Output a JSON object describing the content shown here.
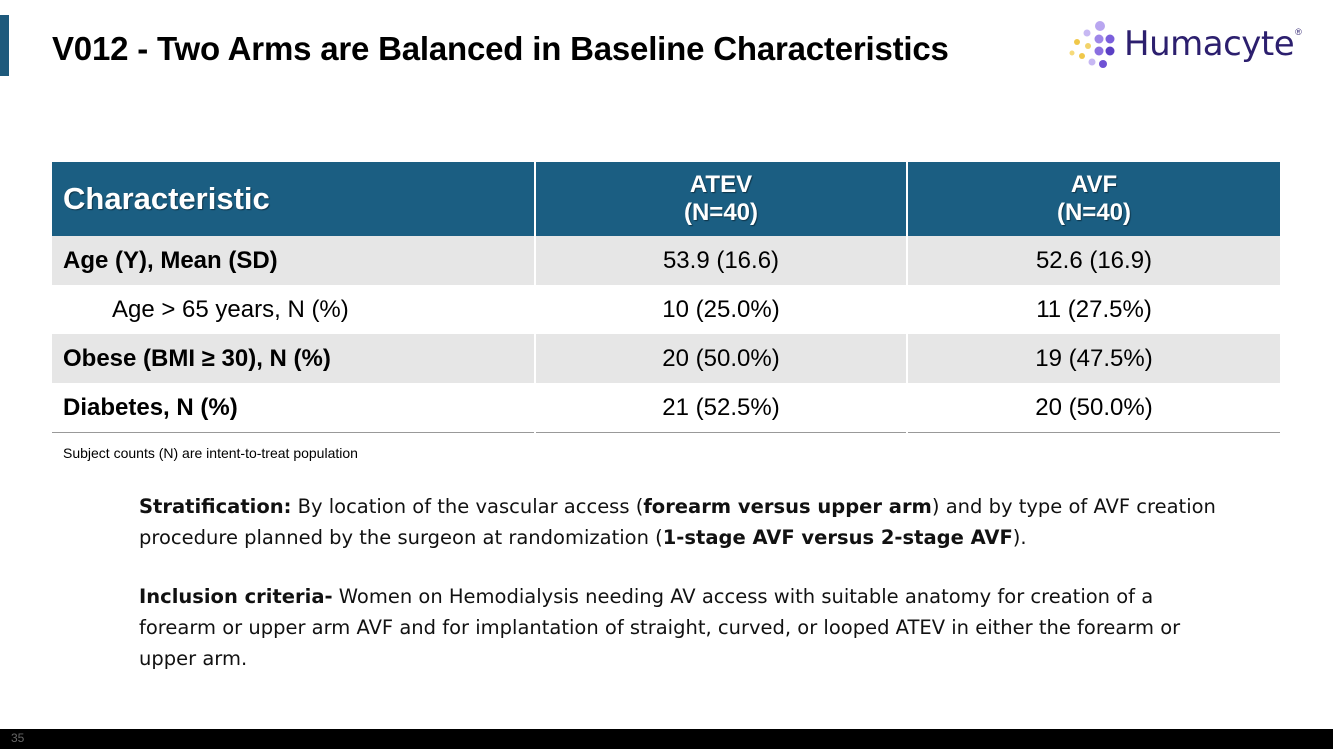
{
  "slide": {
    "title": "V012 - Two Arms are Balanced in Baseline Characteristics",
    "logo_text": "Humacyte",
    "logo_mark": "®",
    "page_number": "35"
  },
  "table": {
    "headers": {
      "characteristic": "Characteristic",
      "atev_name": "ATEV",
      "atev_n": "(N=40)",
      "avf_name": "AVF",
      "avf_n": "(N=40)"
    },
    "rows": [
      {
        "label": "Age (Y), Mean (SD)",
        "atev": "53.9 (16.6)",
        "avf": "52.6 (16.9)"
      },
      {
        "label": "Age > 65 years, N (%)",
        "atev": "10 (25.0%)",
        "avf": "11 (27.5%)"
      },
      {
        "label": "Obese (BMI ≥ 30), N (%)",
        "atev": "20 (50.0%)",
        "avf": "19 (47.5%)"
      },
      {
        "label": "Diabetes,  N (%)",
        "atev": "21 (52.5%)",
        "avf": "20 (50.0%)"
      }
    ],
    "footnote": "Subject counts (N) are intent-to-treat population"
  },
  "stratification": {
    "label": "Stratification:",
    "t1": " By location of the vascular access (",
    "b1": "forearm versus upper arm",
    "t2": ") and by type of AVF creation procedure planned by the surgeon at randomization (",
    "b2": "1-stage AVF versus 2-stage AVF",
    "t3": ")."
  },
  "inclusion": {
    "label": "Inclusion criteria-",
    "text": " Women on Hemodialysis needing AV access with suitable anatomy for creation of a forearm or upper arm AVF and for implantation of straight, curved, or looped ATEV in either the forearm or upper arm."
  },
  "colors": {
    "header_bg": "#1b5e82",
    "accent_bar": "#1e5a7c",
    "row_shade": "#e6e6e6",
    "logo_text": "#2c1f6e"
  }
}
